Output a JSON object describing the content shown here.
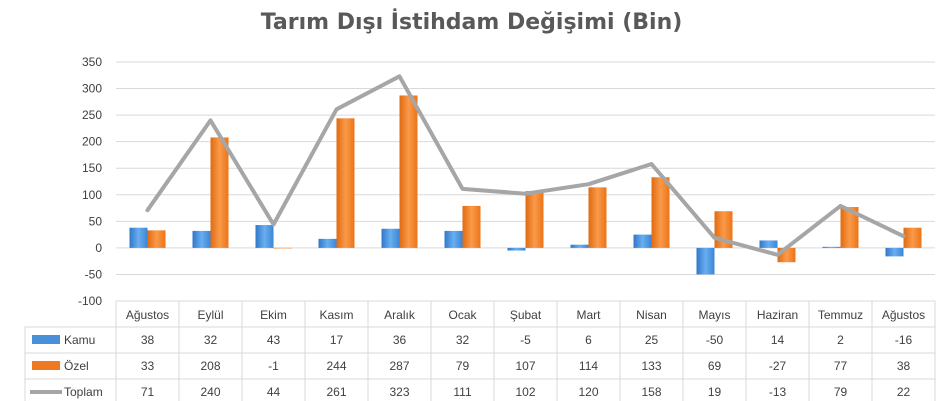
{
  "chart_data": {
    "type": "bar",
    "title": "Tarım Dışı İstihdam Değişimi (Bin)",
    "categories": [
      "Ağustos",
      "Eylül",
      "Ekim",
      "Kasım",
      "Aralık",
      "Ocak",
      "Şubat",
      "Mart",
      "Nisan",
      "Mayıs",
      "Haziran",
      "Temmuz",
      "Ağustos"
    ],
    "series": [
      {
        "name": "Kamu",
        "kind": "bar",
        "color": "#4a90d9",
        "values": [
          38,
          32,
          43,
          17,
          36,
          32,
          -5,
          6,
          25,
          -50,
          14,
          2,
          -16
        ]
      },
      {
        "name": "Özel",
        "kind": "bar",
        "color": "#f07820",
        "values": [
          33,
          208,
          -1,
          244,
          287,
          79,
          107,
          114,
          133,
          69,
          -27,
          77,
          38
        ]
      },
      {
        "name": "Toplam",
        "kind": "line",
        "color": "#a6a6a6",
        "values": [
          71,
          240,
          44,
          261,
          323,
          111,
          102,
          120,
          158,
          19,
          -13,
          79,
          22
        ]
      }
    ],
    "ylim": [
      -100,
      350
    ],
    "yticks": [
      -100,
      -50,
      0,
      50,
      100,
      150,
      200,
      250,
      300,
      350
    ],
    "grid": true,
    "data_table": true
  }
}
